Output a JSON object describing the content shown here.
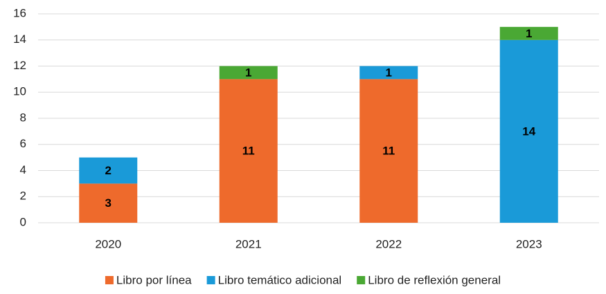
{
  "chart_data": {
    "type": "stacked_bar",
    "categories": [
      "2020",
      "2021",
      "2022",
      "2023"
    ],
    "series": [
      {
        "name": "Libro por línea",
        "color": "#ee6a2c",
        "values": [
          3,
          11,
          11,
          null
        ]
      },
      {
        "name": "Libro temático adicional",
        "color": "#1a9ad8",
        "values": [
          2,
          null,
          1,
          14
        ]
      },
      {
        "name": "Libro de reflexión general",
        "color": "#4aa834",
        "values": [
          null,
          1,
          null,
          1
        ]
      }
    ],
    "ylim": [
      0,
      16
    ],
    "yticks": [
      0,
      2,
      4,
      6,
      8,
      10,
      12,
      14,
      16
    ],
    "grid": true,
    "legend": "bottom"
  }
}
